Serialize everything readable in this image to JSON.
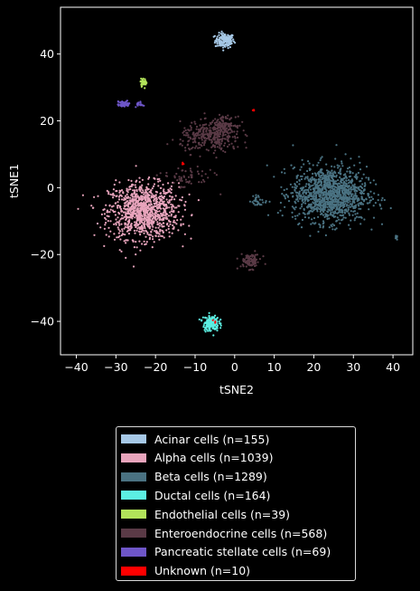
{
  "chart_data": {
    "type": "scatter",
    "title": "",
    "xlabel": "tSNE2",
    "ylabel": "tSNE1",
    "xlim": [
      -44,
      45
    ],
    "ylim": [
      -50,
      54
    ],
    "xticks": [
      -40,
      -30,
      -20,
      -10,
      0,
      10,
      20,
      30,
      40
    ],
    "yticks": [
      -40,
      -20,
      0,
      20,
      40
    ],
    "grid": false,
    "legend_position": "below",
    "series": [
      {
        "name": "Acinar cells (n=155)",
        "color": "#a6c8e6",
        "clusters": [
          {
            "center": [
              -2.5,
              44
            ],
            "spread": [
              2.2,
              2.0
            ],
            "n": 155
          }
        ]
      },
      {
        "name": "Alpha cells (n=1039)",
        "color": "#e8a4bc",
        "clusters": [
          {
            "center": [
              -23,
              -7
            ],
            "spread": [
              8,
              7.5
            ],
            "n": 1039
          }
        ]
      },
      {
        "name": "Beta cells (n=1289)",
        "color": "#4a7282",
        "clusters": [
          {
            "center": [
              24,
              -2
            ],
            "spread": [
              8.5,
              7.5
            ],
            "n": 1250
          },
          {
            "center": [
              41,
              -14.5
            ],
            "spread": [
              0.4,
              0.6
            ],
            "n": 8
          },
          {
            "center": [
              6,
              -4
            ],
            "spread": [
              2,
              1.5
            ],
            "n": 31
          }
        ]
      },
      {
        "name": "Ductal cells (n=164)",
        "color": "#5cefe2",
        "clusters": [
          {
            "center": [
              -6,
              -40.5
            ],
            "spread": [
              1.8,
              2.2
            ],
            "n": 164
          }
        ]
      },
      {
        "name": "Endothelial cells (n=39)",
        "color": "#b2e35a",
        "clusters": [
          {
            "center": [
              -23,
              31.5
            ],
            "spread": [
              0.8,
              1.0
            ],
            "n": 39
          }
        ]
      },
      {
        "name": "Enteroendocrine cells (n=568)",
        "color": "#5a3a46",
        "clusters": [
          {
            "center": [
              -6,
              15
            ],
            "spread": [
              7,
              4
            ],
            "n": 300
          },
          {
            "center": [
              -3,
              19
            ],
            "spread": [
              3,
              2
            ],
            "n": 120
          },
          {
            "center": [
              4,
              -22
            ],
            "spread": [
              2.5,
              2
            ],
            "n": 90
          },
          {
            "center": [
              -12,
              3
            ],
            "spread": [
              6,
              3
            ],
            "n": 58
          }
        ]
      },
      {
        "name": "Pancreatic stellate cells (n=69)",
        "color": "#6e56c8",
        "clusters": [
          {
            "center": [
              -28,
              25
            ],
            "spread": [
              1.5,
              0.8
            ],
            "n": 52
          },
          {
            "center": [
              -24,
              25
            ],
            "spread": [
              0.8,
              0.6
            ],
            "n": 17
          }
        ]
      },
      {
        "name": "Unknown (n=10)",
        "color": "#ff0000",
        "clusters": [
          {
            "center": [
              5,
              23
            ],
            "spread": [
              0.3,
              0.4
            ],
            "n": 4
          },
          {
            "center": [
              -13,
              7
            ],
            "spread": [
              0.4,
              0.4
            ],
            "n": 3
          },
          {
            "center": [
              -5,
              -40
            ],
            "spread": [
              0.4,
              0.4
            ],
            "n": 3
          }
        ]
      }
    ]
  }
}
